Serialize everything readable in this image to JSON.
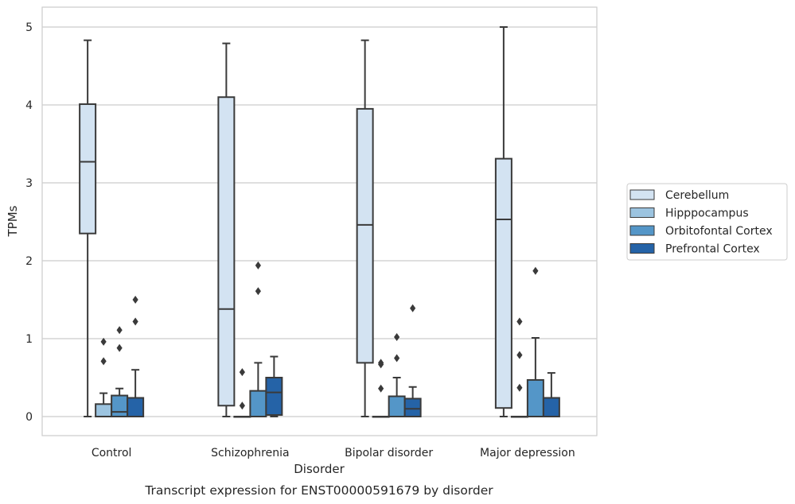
{
  "chart_data": {
    "type": "box",
    "title": "",
    "caption": "Transcript expression for ENST00000591679 by disorder",
    "xlabel": "Disorder",
    "ylabel": "TPMs",
    "ylim": [
      -0.25,
      5.25
    ],
    "yticks": [
      0,
      1,
      2,
      3,
      4,
      5
    ],
    "grid": "horizontal",
    "legend_placement": "right",
    "categories": [
      "Control",
      "Schizophrenia",
      "Bipolar disorder",
      "Major depression"
    ],
    "series": [
      {
        "name": "Cerebellum",
        "color": "#d3e3f2",
        "boxes": [
          {
            "whisker_low": 0,
            "q1": 2.35,
            "median": 3.27,
            "q3": 4.01,
            "whisker_high": 4.83,
            "outliers": []
          },
          {
            "whisker_low": 0,
            "q1": 0.14,
            "median": 1.38,
            "q3": 4.1,
            "whisker_high": 4.79,
            "outliers": []
          },
          {
            "whisker_low": 0,
            "q1": 0.69,
            "median": 2.46,
            "q3": 3.95,
            "whisker_high": 4.83,
            "outliers": []
          },
          {
            "whisker_low": 0,
            "q1": 0.11,
            "median": 2.53,
            "q3": 3.31,
            "whisker_high": 5.0,
            "outliers": []
          }
        ]
      },
      {
        "name": "Hipppocampus",
        "color": "#9cc4e0",
        "boxes": [
          {
            "whisker_low": 0,
            "q1": 0,
            "median": 0,
            "q3": 0.16,
            "whisker_high": 0.3,
            "outliers": [
              0.71,
              0.96
            ]
          },
          {
            "whisker_low": 0,
            "q1": 0,
            "median": 0,
            "q3": 0,
            "whisker_high": 0,
            "outliers": [
              0.14,
              0.57
            ]
          },
          {
            "whisker_low": 0,
            "q1": 0,
            "median": 0,
            "q3": 0,
            "whisker_high": 0,
            "outliers": [
              0.36,
              0.67,
              0.69
            ]
          },
          {
            "whisker_low": 0,
            "q1": 0,
            "median": 0,
            "q3": 0,
            "whisker_high": 0,
            "outliers": [
              0.37,
              0.79,
              1.22
            ]
          }
        ]
      },
      {
        "name": "Orbitofontal Cortex",
        "color": "#5496c8",
        "boxes": [
          {
            "whisker_low": 0,
            "q1": 0,
            "median": 0.06,
            "q3": 0.27,
            "whisker_high": 0.36,
            "outliers": [
              0.88,
              1.11
            ]
          },
          {
            "whisker_low": 0,
            "q1": 0,
            "median": 0,
            "q3": 0.33,
            "whisker_high": 0.69,
            "outliers": [
              1.61,
              1.94
            ]
          },
          {
            "whisker_low": 0,
            "q1": 0,
            "median": 0,
            "q3": 0.26,
            "whisker_high": 0.5,
            "outliers": [
              0.75,
              1.02
            ]
          },
          {
            "whisker_low": 0,
            "q1": 0,
            "median": 0,
            "q3": 0.47,
            "whisker_high": 1.01,
            "outliers": [
              1.87
            ]
          }
        ]
      },
      {
        "name": "Prefrontal Cortex",
        "color": "#2563a7",
        "boxes": [
          {
            "whisker_low": 0,
            "q1": 0,
            "median": 0,
            "q3": 0.24,
            "whisker_high": 0.6,
            "outliers": [
              1.22,
              1.5
            ]
          },
          {
            "whisker_low": 0,
            "q1": 0.02,
            "median": 0.31,
            "q3": 0.5,
            "whisker_high": 0.77,
            "outliers": []
          },
          {
            "whisker_low": 0,
            "q1": 0,
            "median": 0.1,
            "q3": 0.23,
            "whisker_high": 0.38,
            "outliers": [
              1.39
            ]
          },
          {
            "whisker_low": 0,
            "q1": 0,
            "median": 0,
            "q3": 0.24,
            "whisker_high": 0.56,
            "outliers": []
          }
        ]
      }
    ]
  }
}
